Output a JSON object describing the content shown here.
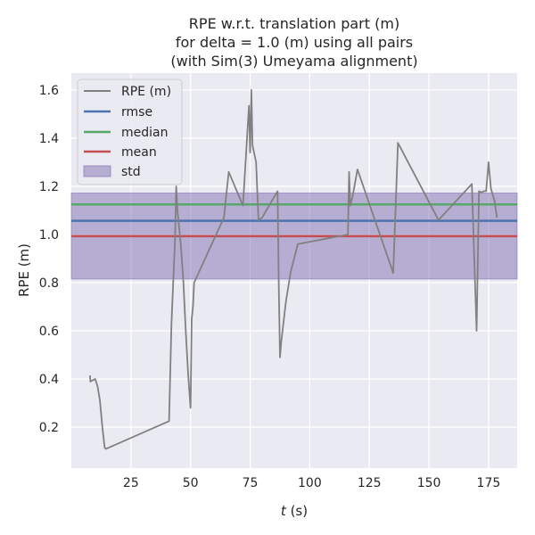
{
  "chart_data": {
    "type": "line",
    "title_lines": [
      "RPE w.r.t. translation part (m)",
      "for delta = 1.0 (m) using all pairs",
      "(with Sim(3) Umeyama alignment)"
    ],
    "xlabel_var": "t",
    "xlabel_unit": " (s)",
    "ylabel": "RPE (m)",
    "xlim": [
      0,
      187
    ],
    "ylim": [
      0.03,
      1.67
    ],
    "x_ticks": [
      25,
      50,
      75,
      100,
      125,
      150,
      175
    ],
    "y_ticks": [
      0.2,
      0.4,
      0.6,
      0.8,
      1.0,
      1.2,
      1.4,
      1.6
    ],
    "legend_position": "upper left",
    "grid": true,
    "series": [
      {
        "name": "RPE (m)",
        "color": "#808080",
        "x": [
          7.8,
          8.0,
          9.0,
          10.0,
          11.0,
          12.0,
          13.0,
          14.0,
          14.5,
          41.0,
          42.0,
          43.5,
          44.0,
          44.5,
          45.0,
          46.0,
          47.0,
          48.0,
          49.0,
          50.0,
          50.5,
          51.0,
          51.5,
          64.0,
          66.0,
          72.0,
          74.5,
          75.0,
          75.5,
          76.0,
          77.5,
          78.5,
          80.0,
          86.5,
          87.0,
          87.5,
          88.0,
          90.0,
          92.0,
          95.0,
          116.0,
          116.5,
          117.0,
          118.0,
          120.0,
          135.0,
          137.0,
          154.0,
          168.0,
          170.0,
          171.0,
          172.0,
          173.0,
          174.0,
          175.0,
          176.0,
          177.5,
          178.5
        ],
        "y": [
          0.415,
          0.39,
          0.395,
          0.4,
          0.37,
          0.31,
          0.2,
          0.115,
          0.11,
          0.225,
          0.63,
          0.98,
          1.2,
          1.1,
          1.05,
          0.95,
          0.8,
          0.6,
          0.42,
          0.28,
          0.65,
          0.7,
          0.8,
          1.07,
          1.26,
          1.12,
          1.535,
          1.34,
          1.6,
          1.37,
          1.3,
          1.06,
          1.07,
          1.18,
          0.8,
          0.49,
          0.55,
          0.72,
          0.845,
          0.96,
          1.0,
          1.26,
          1.12,
          1.16,
          1.27,
          0.84,
          1.38,
          1.06,
          1.21,
          0.6,
          1.18,
          1.175,
          1.18,
          1.18,
          1.3,
          1.19,
          1.14,
          1.07
        ]
      },
      {
        "name": "rmse",
        "color": "#4C72B0",
        "value": 1.057
      },
      {
        "name": "median",
        "color": "#55A868",
        "value": 1.125
      },
      {
        "name": "mean",
        "color": "#C44E52",
        "value": 0.993
      },
      {
        "name": "std",
        "color": "#8172B2",
        "range": [
          0.815,
          1.172
        ]
      }
    ]
  }
}
